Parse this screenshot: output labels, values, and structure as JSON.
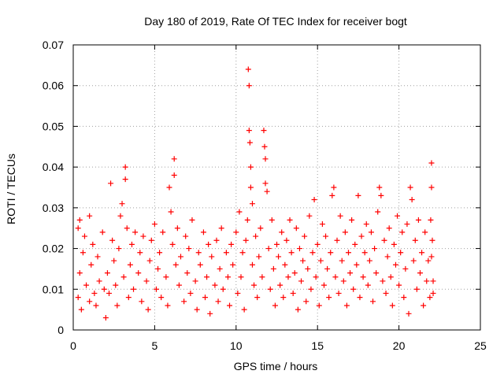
{
  "chart_data": {
    "type": "scatter",
    "title": "Day 180 of 2019, Rate Of TEC Index for receiver bogt",
    "xlabel": "GPS time / hours",
    "ylabel": "ROTI / TECUs",
    "xlim": [
      0,
      25
    ],
    "ylim": [
      0,
      0.07
    ],
    "xticks": [
      0,
      5,
      10,
      15,
      20,
      25
    ],
    "xtick_labels": [
      "0",
      "5",
      "10",
      "15",
      "20",
      "25"
    ],
    "yticks": [
      0,
      0.01,
      0.02,
      0.03,
      0.04,
      0.05,
      0.06,
      0.07
    ],
    "ytick_labels": [
      "0",
      "0.01",
      "0.02",
      "0.03",
      "0.04",
      "0.05",
      "0.06",
      "0.07"
    ],
    "grid": true,
    "marker": "plus",
    "color": "#ff0000",
    "series": [
      {
        "name": "",
        "points": [
          [
            0.3,
            0.025
          ],
          [
            0.3,
            0.008
          ],
          [
            0.4,
            0.014
          ],
          [
            0.4,
            0.027
          ],
          [
            0.5,
            0.005
          ],
          [
            0.6,
            0.019
          ],
          [
            0.7,
            0.023
          ],
          [
            0.8,
            0.011
          ],
          [
            1.0,
            0.028
          ],
          [
            1.0,
            0.007
          ],
          [
            1.1,
            0.016
          ],
          [
            1.2,
            0.021
          ],
          [
            1.3,
            0.009
          ],
          [
            1.4,
            0.006
          ],
          [
            1.5,
            0.018
          ],
          [
            1.6,
            0.012
          ],
          [
            1.8,
            0.024
          ],
          [
            1.9,
            0.01
          ],
          [
            2.0,
            0.003
          ],
          [
            2.1,
            0.014
          ],
          [
            2.2,
            0.009
          ],
          [
            2.3,
            0.036
          ],
          [
            2.4,
            0.022
          ],
          [
            2.5,
            0.017
          ],
          [
            2.6,
            0.011
          ],
          [
            2.7,
            0.006
          ],
          [
            2.8,
            0.02
          ],
          [
            2.9,
            0.028
          ],
          [
            3.0,
            0.031
          ],
          [
            3.1,
            0.013
          ],
          [
            3.2,
            0.04
          ],
          [
            3.2,
            0.037
          ],
          [
            3.3,
            0.025
          ],
          [
            3.4,
            0.008
          ],
          [
            3.5,
            0.016
          ],
          [
            3.6,
            0.021
          ],
          [
            3.7,
            0.01
          ],
          [
            3.8,
            0.024
          ],
          [
            4.0,
            0.014
          ],
          [
            4.1,
            0.019
          ],
          [
            4.2,
            0.007
          ],
          [
            4.3,
            0.023
          ],
          [
            4.5,
            0.012
          ],
          [
            4.6,
            0.005
          ],
          [
            4.7,
            0.017
          ],
          [
            4.8,
            0.022
          ],
          [
            5.0,
            0.026
          ],
          [
            5.1,
            0.01
          ],
          [
            5.2,
            0.015
          ],
          [
            5.3,
            0.019
          ],
          [
            5.4,
            0.008
          ],
          [
            5.5,
            0.024
          ],
          [
            5.7,
            0.013
          ],
          [
            5.8,
            0.006
          ],
          [
            5.9,
            0.035
          ],
          [
            6.0,
            0.029
          ],
          [
            6.1,
            0.021
          ],
          [
            6.2,
            0.042
          ],
          [
            6.2,
            0.038
          ],
          [
            6.3,
            0.016
          ],
          [
            6.4,
            0.025
          ],
          [
            6.5,
            0.011
          ],
          [
            6.6,
            0.018
          ],
          [
            6.8,
            0.007
          ],
          [
            6.9,
            0.023
          ],
          [
            7.0,
            0.014
          ],
          [
            7.1,
            0.02
          ],
          [
            7.2,
            0.009
          ],
          [
            7.3,
            0.027
          ],
          [
            7.5,
            0.012
          ],
          [
            7.6,
            0.005
          ],
          [
            7.7,
            0.019
          ],
          [
            7.8,
            0.016
          ],
          [
            8.0,
            0.024
          ],
          [
            8.1,
            0.008
          ],
          [
            8.2,
            0.013
          ],
          [
            8.3,
            0.021
          ],
          [
            8.4,
            0.004
          ],
          [
            8.5,
            0.018
          ],
          [
            8.7,
            0.011
          ],
          [
            8.8,
            0.022
          ],
          [
            8.9,
            0.007
          ],
          [
            9.0,
            0.015
          ],
          [
            9.1,
            0.025
          ],
          [
            9.2,
            0.01
          ],
          [
            9.4,
            0.019
          ],
          [
            9.5,
            0.013
          ],
          [
            9.6,
            0.006
          ],
          [
            9.7,
            0.021
          ],
          [
            9.8,
            0.016
          ],
          [
            10.0,
            0.024
          ],
          [
            10.1,
            0.009
          ],
          [
            10.2,
            0.029
          ],
          [
            10.3,
            0.013
          ],
          [
            10.4,
            0.019
          ],
          [
            10.5,
            0.005
          ],
          [
            10.6,
            0.022
          ],
          [
            10.7,
            0.027
          ],
          [
            10.75,
            0.064
          ],
          [
            10.8,
            0.06
          ],
          [
            10.8,
            0.049
          ],
          [
            10.85,
            0.046
          ],
          [
            10.9,
            0.04
          ],
          [
            10.9,
            0.035
          ],
          [
            11.0,
            0.031
          ],
          [
            11.0,
            0.016
          ],
          [
            11.1,
            0.011
          ],
          [
            11.2,
            0.023
          ],
          [
            11.3,
            0.008
          ],
          [
            11.4,
            0.018
          ],
          [
            11.5,
            0.025
          ],
          [
            11.6,
            0.013
          ],
          [
            11.7,
            0.049
          ],
          [
            11.75,
            0.045
          ],
          [
            11.8,
            0.042
          ],
          [
            11.8,
            0.036
          ],
          [
            11.9,
            0.034
          ],
          [
            12.0,
            0.02
          ],
          [
            12.1,
            0.01
          ],
          [
            12.2,
            0.027
          ],
          [
            12.3,
            0.015
          ],
          [
            12.4,
            0.006
          ],
          [
            12.5,
            0.021
          ],
          [
            12.6,
            0.018
          ],
          [
            12.7,
            0.011
          ],
          [
            12.8,
            0.024
          ],
          [
            12.9,
            0.008
          ],
          [
            13.0,
            0.016
          ],
          [
            13.1,
            0.022
          ],
          [
            13.2,
            0.013
          ],
          [
            13.3,
            0.027
          ],
          [
            13.4,
            0.019
          ],
          [
            13.5,
            0.009
          ],
          [
            13.6,
            0.014
          ],
          [
            13.7,
            0.025
          ],
          [
            13.8,
            0.005
          ],
          [
            13.9,
            0.02
          ],
          [
            14.0,
            0.012
          ],
          [
            14.1,
            0.017
          ],
          [
            14.2,
            0.023
          ],
          [
            14.3,
            0.007
          ],
          [
            14.4,
            0.015
          ],
          [
            14.5,
            0.028
          ],
          [
            14.6,
            0.01
          ],
          [
            14.7,
            0.019
          ],
          [
            14.8,
            0.032
          ],
          [
            14.9,
            0.013
          ],
          [
            15.0,
            0.021
          ],
          [
            15.1,
            0.006
          ],
          [
            15.2,
            0.017
          ],
          [
            15.3,
            0.026
          ],
          [
            15.4,
            0.011
          ],
          [
            15.5,
            0.023
          ],
          [
            15.6,
            0.015
          ],
          [
            15.7,
            0.008
          ],
          [
            15.8,
            0.019
          ],
          [
            15.9,
            0.033
          ],
          [
            16.0,
            0.035
          ],
          [
            16.1,
            0.013
          ],
          [
            16.2,
            0.022
          ],
          [
            16.3,
            0.009
          ],
          [
            16.4,
            0.028
          ],
          [
            16.5,
            0.017
          ],
          [
            16.6,
            0.012
          ],
          [
            16.7,
            0.024
          ],
          [
            16.8,
            0.006
          ],
          [
            16.9,
            0.019
          ],
          [
            17.0,
            0.014
          ],
          [
            17.1,
            0.027
          ],
          [
            17.2,
            0.01
          ],
          [
            17.3,
            0.021
          ],
          [
            17.4,
            0.016
          ],
          [
            17.5,
            0.033
          ],
          [
            17.6,
            0.008
          ],
          [
            17.7,
            0.023
          ],
          [
            17.8,
            0.013
          ],
          [
            17.9,
            0.019
          ],
          [
            18.0,
            0.026
          ],
          [
            18.1,
            0.011
          ],
          [
            18.2,
            0.017
          ],
          [
            18.3,
            0.024
          ],
          [
            18.4,
            0.007
          ],
          [
            18.5,
            0.02
          ],
          [
            18.6,
            0.014
          ],
          [
            18.7,
            0.029
          ],
          [
            18.8,
            0.035
          ],
          [
            18.9,
            0.033
          ],
          [
            19.0,
            0.012
          ],
          [
            19.1,
            0.022
          ],
          [
            19.2,
            0.009
          ],
          [
            19.3,
            0.018
          ],
          [
            19.4,
            0.025
          ],
          [
            19.5,
            0.013
          ],
          [
            19.6,
            0.006
          ],
          [
            19.7,
            0.021
          ],
          [
            19.8,
            0.016
          ],
          [
            19.9,
            0.028
          ],
          [
            20.0,
            0.011
          ],
          [
            20.1,
            0.019
          ],
          [
            20.2,
            0.024
          ],
          [
            20.3,
            0.008
          ],
          [
            20.4,
            0.015
          ],
          [
            20.5,
            0.026
          ],
          [
            20.6,
            0.004
          ],
          [
            20.7,
            0.035
          ],
          [
            20.8,
            0.032
          ],
          [
            20.9,
            0.017
          ],
          [
            21.0,
            0.022
          ],
          [
            21.1,
            0.01
          ],
          [
            21.2,
            0.027
          ],
          [
            21.3,
            0.014
          ],
          [
            21.4,
            0.019
          ],
          [
            21.5,
            0.006
          ],
          [
            21.6,
            0.024
          ],
          [
            21.7,
            0.012
          ],
          [
            21.8,
            0.017
          ],
          [
            21.9,
            0.008
          ],
          [
            22.0,
            0.041
          ],
          [
            22.0,
            0.035
          ],
          [
            22.05,
            0.022
          ],
          [
            22.1,
            0.012
          ],
          [
            21.95,
            0.027
          ],
          [
            22.0,
            0.018
          ],
          [
            22.1,
            0.009
          ]
        ]
      }
    ]
  }
}
